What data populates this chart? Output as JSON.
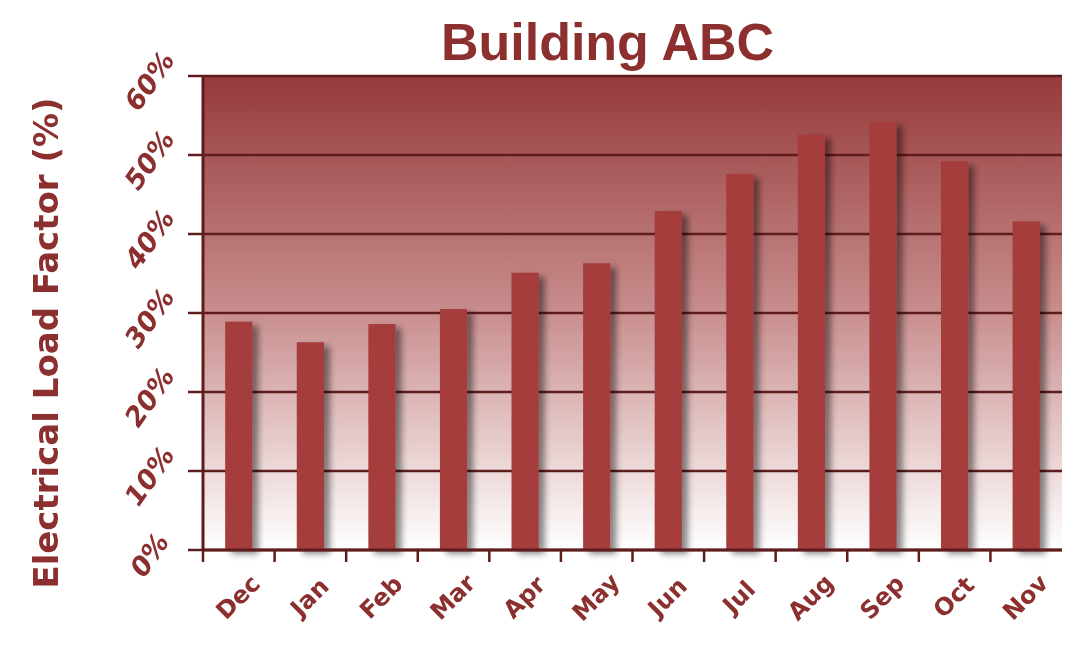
{
  "chart_data": {
    "type": "bar",
    "title": "Building ABC",
    "ylabel": "Electrical Load Factor (%)",
    "categories": [
      "Dec",
      "Jan",
      "Feb",
      "Mar",
      "Apr",
      "May",
      "Jun",
      "Jul",
      "Aug",
      "Sep",
      "Oct",
      "Nov"
    ],
    "values": [
      28.9,
      26.3,
      28.6,
      30.5,
      35.1,
      36.3,
      42.9,
      47.6,
      52.6,
      54.2,
      49.2,
      41.6
    ],
    "color": "#a53c3c",
    "ylim": [
      0,
      60
    ],
    "yticks": [
      {
        "value": 0,
        "label": "0%"
      },
      {
        "value": 10,
        "label": "10%"
      },
      {
        "value": 20,
        "label": "20%"
      },
      {
        "value": 30,
        "label": "30%"
      },
      {
        "value": 40,
        "label": "40%"
      },
      {
        "value": 50,
        "label": "50%"
      },
      {
        "value": 60,
        "label": "60%"
      }
    ],
    "grid": "y"
  }
}
